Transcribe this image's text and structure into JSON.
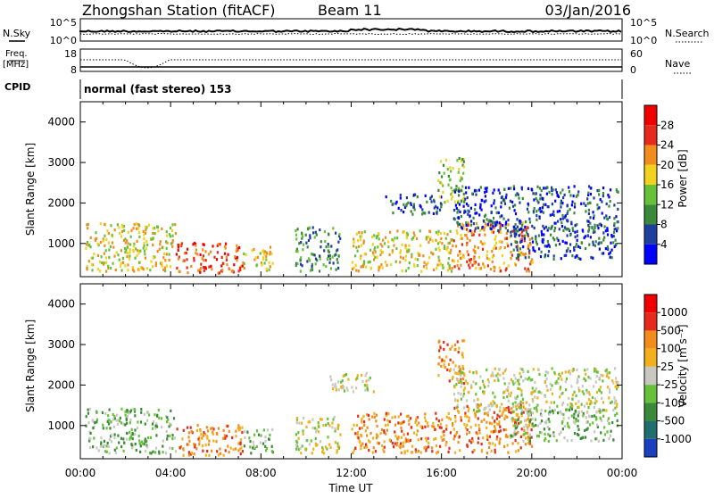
{
  "header": {
    "station": "Zhongshan Station (fitACF)",
    "beam": "Beam 11",
    "date": "03/Jan/2016"
  },
  "strip_panels": {
    "noise": {
      "left_label": "N.Sky",
      "left_ticks": [
        "10^5",
        "10^0"
      ],
      "right_label": "N.Search",
      "right_ticks": [
        "10^5",
        "10^0"
      ]
    },
    "freq": {
      "left_label_line1": "Freq.",
      "left_label_line2": "[MHz]",
      "left_ticks": [
        "18",
        "8"
      ],
      "right_label": "Nave",
      "right_ticks": [
        "60",
        "0"
      ]
    },
    "cpid": {
      "label": "CPID",
      "text": "normal (fast stereo) 153"
    }
  },
  "chart_data": [
    {
      "type": "heatmap",
      "panel": "power",
      "ylabel": "Slant Range [km]",
      "xlabel": "",
      "y_ticks": [
        1000,
        2000,
        3000,
        4000
      ],
      "ylim": [
        180,
        4500
      ],
      "x_ticks": [
        "00:00",
        "04:00",
        "08:00",
        "12:00",
        "16:00",
        "20:00",
        "00:00"
      ],
      "xlim_hours": [
        0,
        24
      ],
      "colorbar": {
        "label": "Power [dB]",
        "ticks": [
          "4",
          "8",
          "12",
          "16",
          "20",
          "24",
          "28"
        ],
        "colors": [
          "#0000ff",
          "#1f3f9f",
          "#3a8a3a",
          "#67c23a",
          "#f2d21c",
          "#f28c1c",
          "#e62b1c",
          "#f00000"
        ]
      },
      "scatter_regions": [
        {
          "t0": 0.2,
          "t1": 4.2,
          "r0": 300,
          "r1": 1500,
          "level": 4
        },
        {
          "t0": 4.2,
          "t1": 7.2,
          "r0": 250,
          "r1": 1000,
          "level": 6
        },
        {
          "t0": 7.2,
          "t1": 8.5,
          "r0": 300,
          "r1": 900,
          "level": 4
        },
        {
          "t0": 9.5,
          "t1": 11.5,
          "r0": 300,
          "r1": 1400,
          "level": 2
        },
        {
          "t0": 12.0,
          "t1": 16.5,
          "r0": 300,
          "r1": 1300,
          "level": 4
        },
        {
          "t0": 13.5,
          "t1": 16.0,
          "r0": 1700,
          "r1": 2200,
          "level": 1
        },
        {
          "t0": 15.8,
          "t1": 17.0,
          "r0": 2000,
          "r1": 3100,
          "level": 3
        },
        {
          "t0": 16.5,
          "t1": 20.0,
          "r0": 300,
          "r1": 1500,
          "level": 5
        },
        {
          "t0": 16.5,
          "t1": 23.8,
          "r0": 1300,
          "r1": 2400,
          "level": 1
        },
        {
          "t0": 19.0,
          "t1": 23.8,
          "r0": 600,
          "r1": 1400,
          "level": 1
        }
      ]
    },
    {
      "type": "heatmap",
      "panel": "velocity",
      "ylabel": "Slant Range [km]",
      "xlabel": "Time UT",
      "y_ticks": [
        1000,
        2000,
        3000,
        4000
      ],
      "ylim": [
        180,
        4500
      ],
      "x_ticks": [
        "00:00",
        "04:00",
        "08:00",
        "12:00",
        "16:00",
        "20:00",
        "00:00"
      ],
      "xlim_hours": [
        0,
        24
      ],
      "colorbar": {
        "label": "Velocity [m s⁻¹]",
        "ticks": [
          "1000",
          "500",
          "100",
          "25",
          "-25",
          "-100",
          "-500",
          "-1000"
        ],
        "colors": [
          "#1a3fbf",
          "#1f6f6f",
          "#3a8a3a",
          "#67c23a",
          "#c8c8c0",
          "#f2b01c",
          "#f28c1c",
          "#e62b1c",
          "#f00000"
        ]
      },
      "scatter_regions": [
        {
          "t0": 0.2,
          "t1": 4.2,
          "r0": 300,
          "r1": 1400,
          "level": 3
        },
        {
          "t0": 4.2,
          "t1": 7.2,
          "r0": 250,
          "r1": 1000,
          "level": 6
        },
        {
          "t0": 7.2,
          "t1": 8.5,
          "r0": 300,
          "r1": 900,
          "level": 3
        },
        {
          "t0": 9.5,
          "t1": 11.5,
          "r0": 300,
          "r1": 1200,
          "level": 4
        },
        {
          "t0": 12.0,
          "t1": 16.5,
          "r0": 300,
          "r1": 1300,
          "level": 6
        },
        {
          "t0": 11.0,
          "t1": 13.0,
          "r0": 1800,
          "r1": 2300,
          "level": 4
        },
        {
          "t0": 15.8,
          "t1": 17.0,
          "r0": 2000,
          "r1": 3100,
          "level": 6
        },
        {
          "t0": 16.5,
          "t1": 20.0,
          "r0": 300,
          "r1": 1500,
          "level": 6
        },
        {
          "t0": 16.5,
          "t1": 23.8,
          "r0": 1300,
          "r1": 2400,
          "level": 4
        },
        {
          "t0": 19.0,
          "t1": 23.8,
          "r0": 600,
          "r1": 1400,
          "level": 3
        }
      ]
    }
  ]
}
